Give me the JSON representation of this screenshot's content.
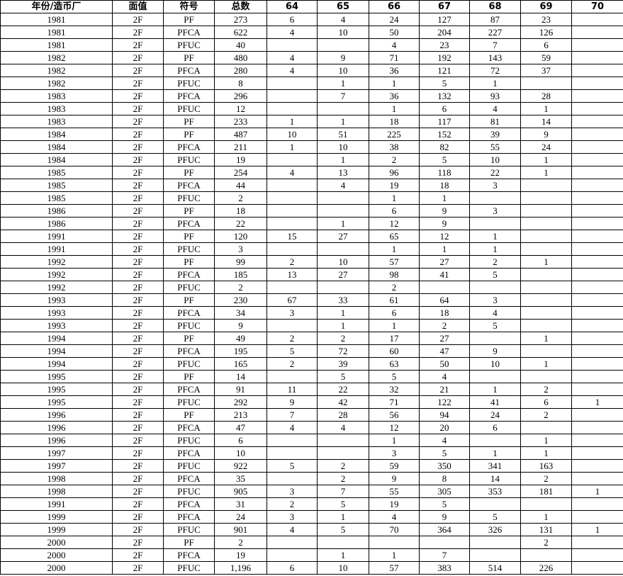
{
  "table": {
    "header": [
      "年份/造币厂",
      "面值",
      "符号",
      "总数",
      "64",
      "65",
      "66",
      "67",
      "68",
      "69",
      "70"
    ],
    "rows": [
      [
        "1981",
        "2F",
        "PF",
        "273",
        "6",
        "4",
        "24",
        "127",
        "87",
        "23",
        null
      ],
      [
        "1981",
        "2F",
        "PFCA",
        "622",
        "4",
        "10",
        "50",
        "204",
        "227",
        "126",
        null
      ],
      [
        "1981",
        "2F",
        "PFUC",
        "40",
        null,
        null,
        "4",
        "23",
        "7",
        "6",
        null
      ],
      [
        "1982",
        "2F",
        "PF",
        "480",
        "4",
        "9",
        "71",
        "192",
        "143",
        "59",
        null
      ],
      [
        "1982",
        "2F",
        "PFCA",
        "280",
        "4",
        "10",
        "36",
        "121",
        "72",
        "37",
        null
      ],
      [
        "1982",
        "2F",
        "PFUC",
        "8",
        null,
        "1",
        "1",
        "5",
        "1",
        null,
        null
      ],
      [
        "1983",
        "2F",
        "PFCA",
        "296",
        null,
        "7",
        "36",
        "132",
        "93",
        "28",
        null
      ],
      [
        "1983",
        "2F",
        "PFUC",
        "12",
        null,
        null,
        "1",
        "6",
        "4",
        "1",
        null
      ],
      [
        "1983",
        "2F",
        "PF",
        "233",
        "1",
        "1",
        "18",
        "117",
        "81",
        "14",
        null
      ],
      [
        "1984",
        "2F",
        "PF",
        "487",
        "10",
        "51",
        "225",
        "152",
        "39",
        "9",
        null
      ],
      [
        "1984",
        "2F",
        "PFCA",
        "211",
        "1",
        "10",
        "38",
        "82",
        "55",
        "24",
        null
      ],
      [
        "1984",
        "2F",
        "PFUC",
        "19",
        null,
        "1",
        "2",
        "5",
        "10",
        "1",
        null
      ],
      [
        "1985",
        "2F",
        "PF",
        "254",
        "4",
        "13",
        "96",
        "118",
        "22",
        "1",
        null
      ],
      [
        "1985",
        "2F",
        "PFCA",
        "44",
        null,
        "4",
        "19",
        "18",
        "3",
        null,
        null
      ],
      [
        "1985",
        "2F",
        "PFUC",
        "2",
        null,
        null,
        "1",
        "1",
        null,
        null,
        null
      ],
      [
        "1986",
        "2F",
        "PF",
        "18",
        null,
        null,
        "6",
        "9",
        "3",
        null,
        null
      ],
      [
        "1986",
        "2F",
        "PFCA",
        "22",
        null,
        "1",
        "12",
        "9",
        null,
        null,
        null
      ],
      [
        "1991",
        "2F",
        "PF",
        "120",
        "15",
        "27",
        "65",
        "12",
        "1",
        null,
        null
      ],
      [
        "1991",
        "2F",
        "PFUC",
        "3",
        null,
        null,
        "1",
        "1",
        "1",
        null,
        null
      ],
      [
        "1992",
        "2F",
        "PF",
        "99",
        "2",
        "10",
        "57",
        "27",
        "2",
        "1",
        null
      ],
      [
        "1992",
        "2F",
        "PFCA",
        "185",
        "13",
        "27",
        "98",
        "41",
        "5",
        null,
        null
      ],
      [
        "1992",
        "2F",
        "PFUC",
        "2",
        null,
        null,
        "2",
        null,
        null,
        null,
        null
      ],
      [
        "1993",
        "2F",
        "PF",
        "230",
        "67",
        "33",
        "61",
        "64",
        "3",
        null,
        null
      ],
      [
        "1993",
        "2F",
        "PFCA",
        "34",
        "3",
        "1",
        "6",
        "18",
        "4",
        null,
        null
      ],
      [
        "1993",
        "2F",
        "PFUC",
        "9",
        null,
        "1",
        "1",
        "2",
        "5",
        null,
        null
      ],
      [
        "1994",
        "2F",
        "PF",
        "49",
        "2",
        "2",
        "17",
        "27",
        null,
        "1",
        null
      ],
      [
        "1994",
        "2F",
        "PFCA",
        "195",
        "5",
        "72",
        "60",
        "47",
        "9",
        null,
        null
      ],
      [
        "1994",
        "2F",
        "PFUC",
        "165",
        "2",
        "39",
        "63",
        "50",
        "10",
        "1",
        null
      ],
      [
        "1995",
        "2F",
        "PF",
        "14",
        null,
        "5",
        "5",
        "4",
        null,
        null,
        null
      ],
      [
        "1995",
        "2F",
        "PFCA",
        "91",
        "11",
        "22",
        "32",
        "21",
        "1",
        "2",
        null
      ],
      [
        "1995",
        "2F",
        "PFUC",
        "292",
        "9",
        "42",
        "71",
        "122",
        "41",
        "6",
        "1"
      ],
      [
        "1996",
        "2F",
        "PF",
        "213",
        "7",
        "28",
        "56",
        "94",
        "24",
        "2",
        null
      ],
      [
        "1996",
        "2F",
        "PFCA",
        "47",
        "4",
        "4",
        "12",
        "20",
        "6",
        null,
        null
      ],
      [
        "1996",
        "2F",
        "PFUC",
        "6",
        null,
        null,
        "1",
        "4",
        null,
        "1",
        null
      ],
      [
        "1997",
        "2F",
        "PFCA",
        "10",
        null,
        null,
        "3",
        "5",
        "1",
        "1",
        null
      ],
      [
        "1997",
        "2F",
        "PFUC",
        "922",
        "5",
        "2",
        "59",
        "350",
        "341",
        "163",
        null
      ],
      [
        "1998",
        "2F",
        "PFCA",
        "35",
        null,
        "2",
        "9",
        "8",
        "14",
        "2",
        null
      ],
      [
        "1998",
        "2F",
        "PFUC",
        "905",
        "3",
        "7",
        "55",
        "305",
        "353",
        "181",
        "1"
      ],
      [
        "1991",
        "2F",
        "PFCA",
        "31",
        "2",
        "5",
        "19",
        "5",
        null,
        null,
        null
      ],
      [
        "1999",
        "2F",
        "PFCA",
        "24",
        "3",
        "1",
        "4",
        "9",
        "5",
        "1",
        null
      ],
      [
        "1999",
        "2F",
        "PFUC",
        "901",
        "4",
        "5",
        "70",
        "364",
        "326",
        "131",
        "1"
      ],
      [
        "2000",
        "2F",
        "PF",
        "2",
        null,
        null,
        null,
        null,
        null,
        "2",
        null
      ],
      [
        "2000",
        "2F",
        "PFCA",
        "19",
        null,
        "1",
        "1",
        "7",
        null,
        null,
        null
      ],
      [
        "2000",
        "2F",
        "PFUC",
        "1,196",
        "6",
        "10",
        "57",
        "383",
        "514",
        "226",
        null
      ]
    ]
  }
}
